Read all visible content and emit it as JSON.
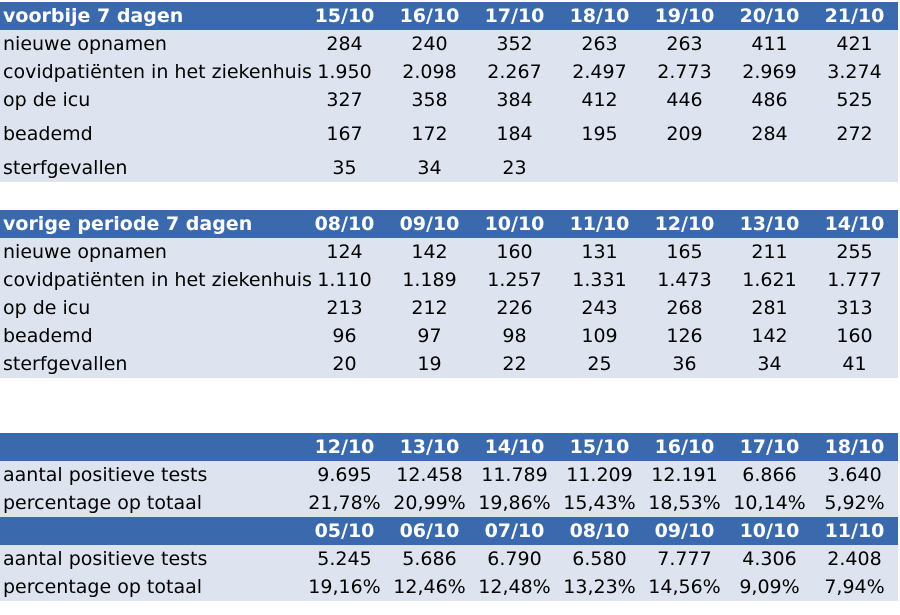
{
  "table1": {
    "title": "voorbije 7 dagen",
    "dates": [
      "15/10",
      "16/10",
      "17/10",
      "18/10",
      "19/10",
      "20/10",
      "21/10"
    ],
    "rows": [
      {
        "label": "nieuwe opnamen",
        "values": [
          "284",
          "240",
          "352",
          "263",
          "263",
          "411",
          "421"
        ]
      },
      {
        "label": "covidpatiënten in het ziekenhuis",
        "values": [
          "1.950",
          "2.098",
          "2.267",
          "2.497",
          "2.773",
          "2.969",
          "3.274"
        ]
      },
      {
        "label": "op de icu",
        "values": [
          "327",
          "358",
          "384",
          "412",
          "446",
          "486",
          "525"
        ]
      },
      {
        "label": "beademd",
        "values": [
          "167",
          "172",
          "184",
          "195",
          "209",
          "284",
          "272"
        ]
      },
      {
        "label": "sterfgevallen",
        "values": [
          "35",
          "34",
          "23",
          "",
          "",
          "",
          ""
        ]
      }
    ]
  },
  "table2": {
    "title": "vorige periode 7 dagen",
    "dates": [
      "08/10",
      "09/10",
      "10/10",
      "11/10",
      "12/10",
      "13/10",
      "14/10"
    ],
    "rows": [
      {
        "label": "nieuwe opnamen",
        "values": [
          "124",
          "142",
          "160",
          "131",
          "165",
          "211",
          "255"
        ]
      },
      {
        "label": "covidpatiënten in het ziekenhuis",
        "values": [
          "1.110",
          "1.189",
          "1.257",
          "1.331",
          "1.473",
          "1.621",
          "1.777"
        ]
      },
      {
        "label": "op de icu",
        "values": [
          "213",
          "212",
          "226",
          "243",
          "268",
          "281",
          "313"
        ]
      },
      {
        "label": "beademd",
        "values": [
          "96",
          "97",
          "98",
          "109",
          "126",
          "142",
          "160"
        ]
      },
      {
        "label": "sterfgevallen",
        "values": [
          "20",
          "19",
          "22",
          "25",
          "36",
          "34",
          "41"
        ]
      }
    ]
  },
  "table3": {
    "title": "",
    "dates": [
      "12/10",
      "13/10",
      "14/10",
      "15/10",
      "16/10",
      "17/10",
      "18/10"
    ],
    "rows": [
      {
        "label": "aantal positieve tests",
        "values": [
          "9.695",
          "12.458",
          "11.789",
          "11.209",
          "12.191",
          "6.866",
          "3.640"
        ]
      },
      {
        "label": "percentage op totaal",
        "values": [
          "21,78%",
          "20,99%",
          "19,86%",
          "15,43%",
          "18,53%",
          "10,14%",
          "5,92%"
        ]
      }
    ]
  },
  "table4": {
    "title": "",
    "dates": [
      "05/10",
      "06/10",
      "07/10",
      "08/10",
      "09/10",
      "10/10",
      "11/10"
    ],
    "rows": [
      {
        "label": "aantal positieve tests",
        "values": [
          "5.245",
          "5.686",
          "6.790",
          "6.580",
          "7.777",
          "4.306",
          "2.408"
        ]
      },
      {
        "label": "percentage op totaal",
        "values": [
          "19,16%",
          "12,46%",
          "12,48%",
          "13,23%",
          "14,56%",
          "9,09%",
          "7,94%"
        ]
      }
    ]
  }
}
